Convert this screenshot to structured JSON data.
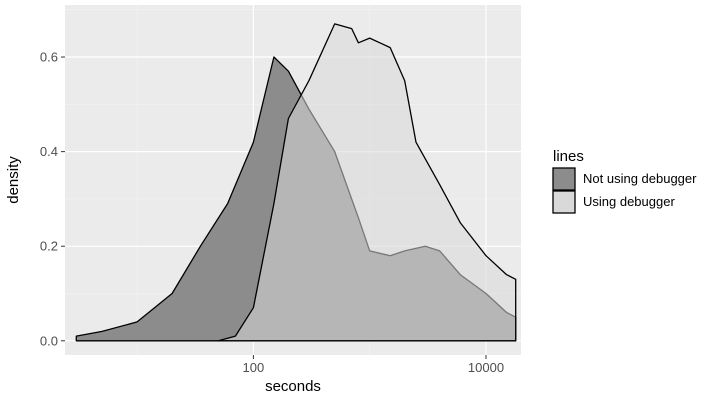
{
  "chart_data": {
    "type": "area",
    "subtype": "density",
    "xlabel": "seconds",
    "ylabel": "density",
    "x_scale": "log10",
    "xlim": [
      2.4,
      20000
    ],
    "ylim": [
      -0.03,
      0.71
    ],
    "x_ticks": [
      {
        "value": 100,
        "label": "100"
      },
      {
        "value": 10000,
        "label": "10000"
      }
    ],
    "y_ticks": [
      {
        "value": 0.0,
        "label": "0.0"
      },
      {
        "value": 0.2,
        "label": "0.2"
      },
      {
        "value": 0.4,
        "label": "0.4"
      },
      {
        "value": 0.6,
        "label": "0.6"
      }
    ],
    "grid": true,
    "legend_position": "right",
    "legend_title": "lines",
    "series": [
      {
        "name": "Not using debugger",
        "color": "#8c8c8c",
        "x": [
          3,
          5,
          10,
          20,
          35,
          60,
          100,
          150,
          200,
          300,
          500,
          800,
          1000,
          1500,
          2000,
          3000,
          4000,
          6000,
          10000,
          15000,
          18000
        ],
        "y": [
          0.01,
          0.02,
          0.04,
          0.1,
          0.2,
          0.29,
          0.42,
          0.6,
          0.57,
          0.49,
          0.4,
          0.26,
          0.19,
          0.18,
          0.19,
          0.2,
          0.19,
          0.14,
          0.1,
          0.06,
          0.05
        ]
      },
      {
        "name": "Using debugger",
        "color": "#d9d9d9",
        "x": [
          50,
          70,
          100,
          150,
          200,
          300,
          500,
          700,
          800,
          1000,
          1500,
          2000,
          2500,
          4000,
          6000,
          10000,
          15000,
          18000
        ],
        "y": [
          0.0,
          0.01,
          0.07,
          0.29,
          0.47,
          0.55,
          0.67,
          0.66,
          0.63,
          0.64,
          0.62,
          0.55,
          0.42,
          0.33,
          0.25,
          0.18,
          0.14,
          0.13
        ]
      }
    ]
  }
}
